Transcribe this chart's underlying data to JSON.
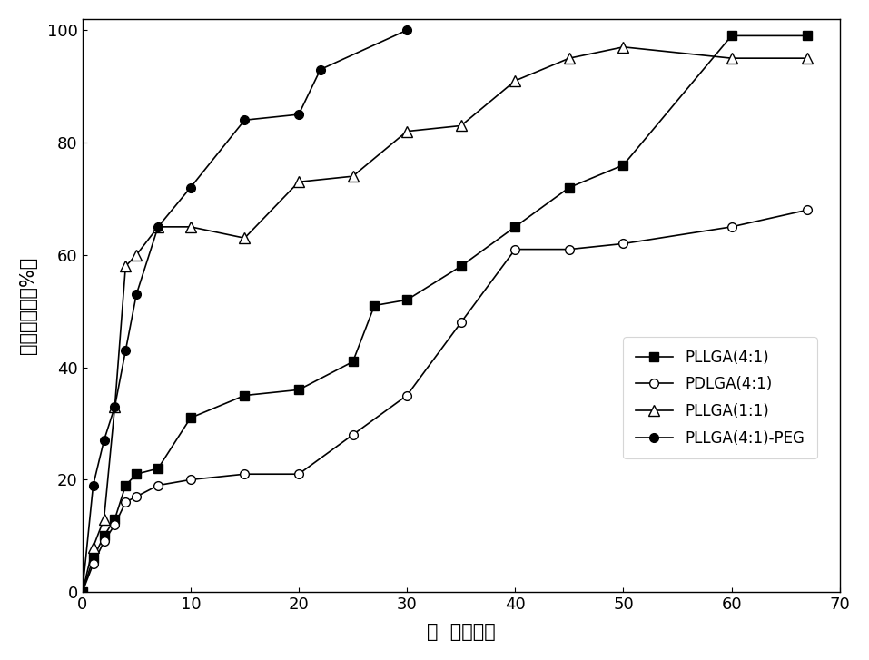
{
  "series": {
    "PLLGA(4:1)": {
      "x": [
        0,
        1,
        2,
        3,
        4,
        5,
        7,
        10,
        15,
        20,
        25,
        27,
        30,
        35,
        40,
        45,
        50,
        60,
        67
      ],
      "y": [
        0,
        6,
        10,
        13,
        19,
        21,
        22,
        31,
        35,
        36,
        41,
        51,
        52,
        58,
        65,
        72,
        76,
        99,
        99
      ],
      "marker": "s",
      "mfc": "black",
      "mec": "black",
      "ms": 7
    },
    "PDLGA(4:1)": {
      "x": [
        0,
        1,
        2,
        3,
        4,
        5,
        7,
        10,
        15,
        20,
        25,
        30,
        35,
        40,
        45,
        50,
        60,
        67
      ],
      "y": [
        0,
        5,
        9,
        12,
        16,
        17,
        19,
        20,
        21,
        21,
        28,
        35,
        48,
        61,
        61,
        62,
        65,
        68
      ],
      "marker": "o",
      "mfc": "white",
      "mec": "black",
      "ms": 7
    },
    "PLLGA(1:1)": {
      "x": [
        0,
        1,
        2,
        3,
        4,
        5,
        7,
        10,
        15,
        20,
        25,
        30,
        35,
        40,
        45,
        50,
        60,
        67
      ],
      "y": [
        0,
        8,
        13,
        33,
        58,
        60,
        65,
        65,
        63,
        73,
        74,
        82,
        83,
        91,
        95,
        97,
        95,
        95
      ],
      "marker": "^",
      "mfc": "white",
      "mec": "black",
      "ms": 8
    },
    "PLLGA(4:1)-PEG": {
      "x": [
        0,
        1,
        2,
        3,
        4,
        5,
        7,
        10,
        15,
        20,
        22,
        30
      ],
      "y": [
        0,
        19,
        27,
        33,
        43,
        53,
        65,
        72,
        84,
        85,
        93,
        100
      ],
      "marker": "o",
      "mfc": "black",
      "mec": "black",
      "ms": 7
    }
  },
  "xlabel": "时  间（天）",
  "ylabel": "累积释放量（%）",
  "xlim": [
    0,
    70
  ],
  "ylim": [
    0,
    102
  ],
  "xticks": [
    0,
    10,
    20,
    30,
    40,
    50,
    60,
    70
  ],
  "yticks": [
    0,
    20,
    40,
    60,
    80,
    100
  ],
  "legend_order": [
    "PLLGA(4:1)",
    "PDLGA(4:1)",
    "PLLGA(1:1)",
    "PLLGA(4:1)-PEG"
  ],
  "background_color": "#ffffff",
  "linewidth": 1.2,
  "tick_labelsize": 13,
  "legend_fontsize": 12
}
